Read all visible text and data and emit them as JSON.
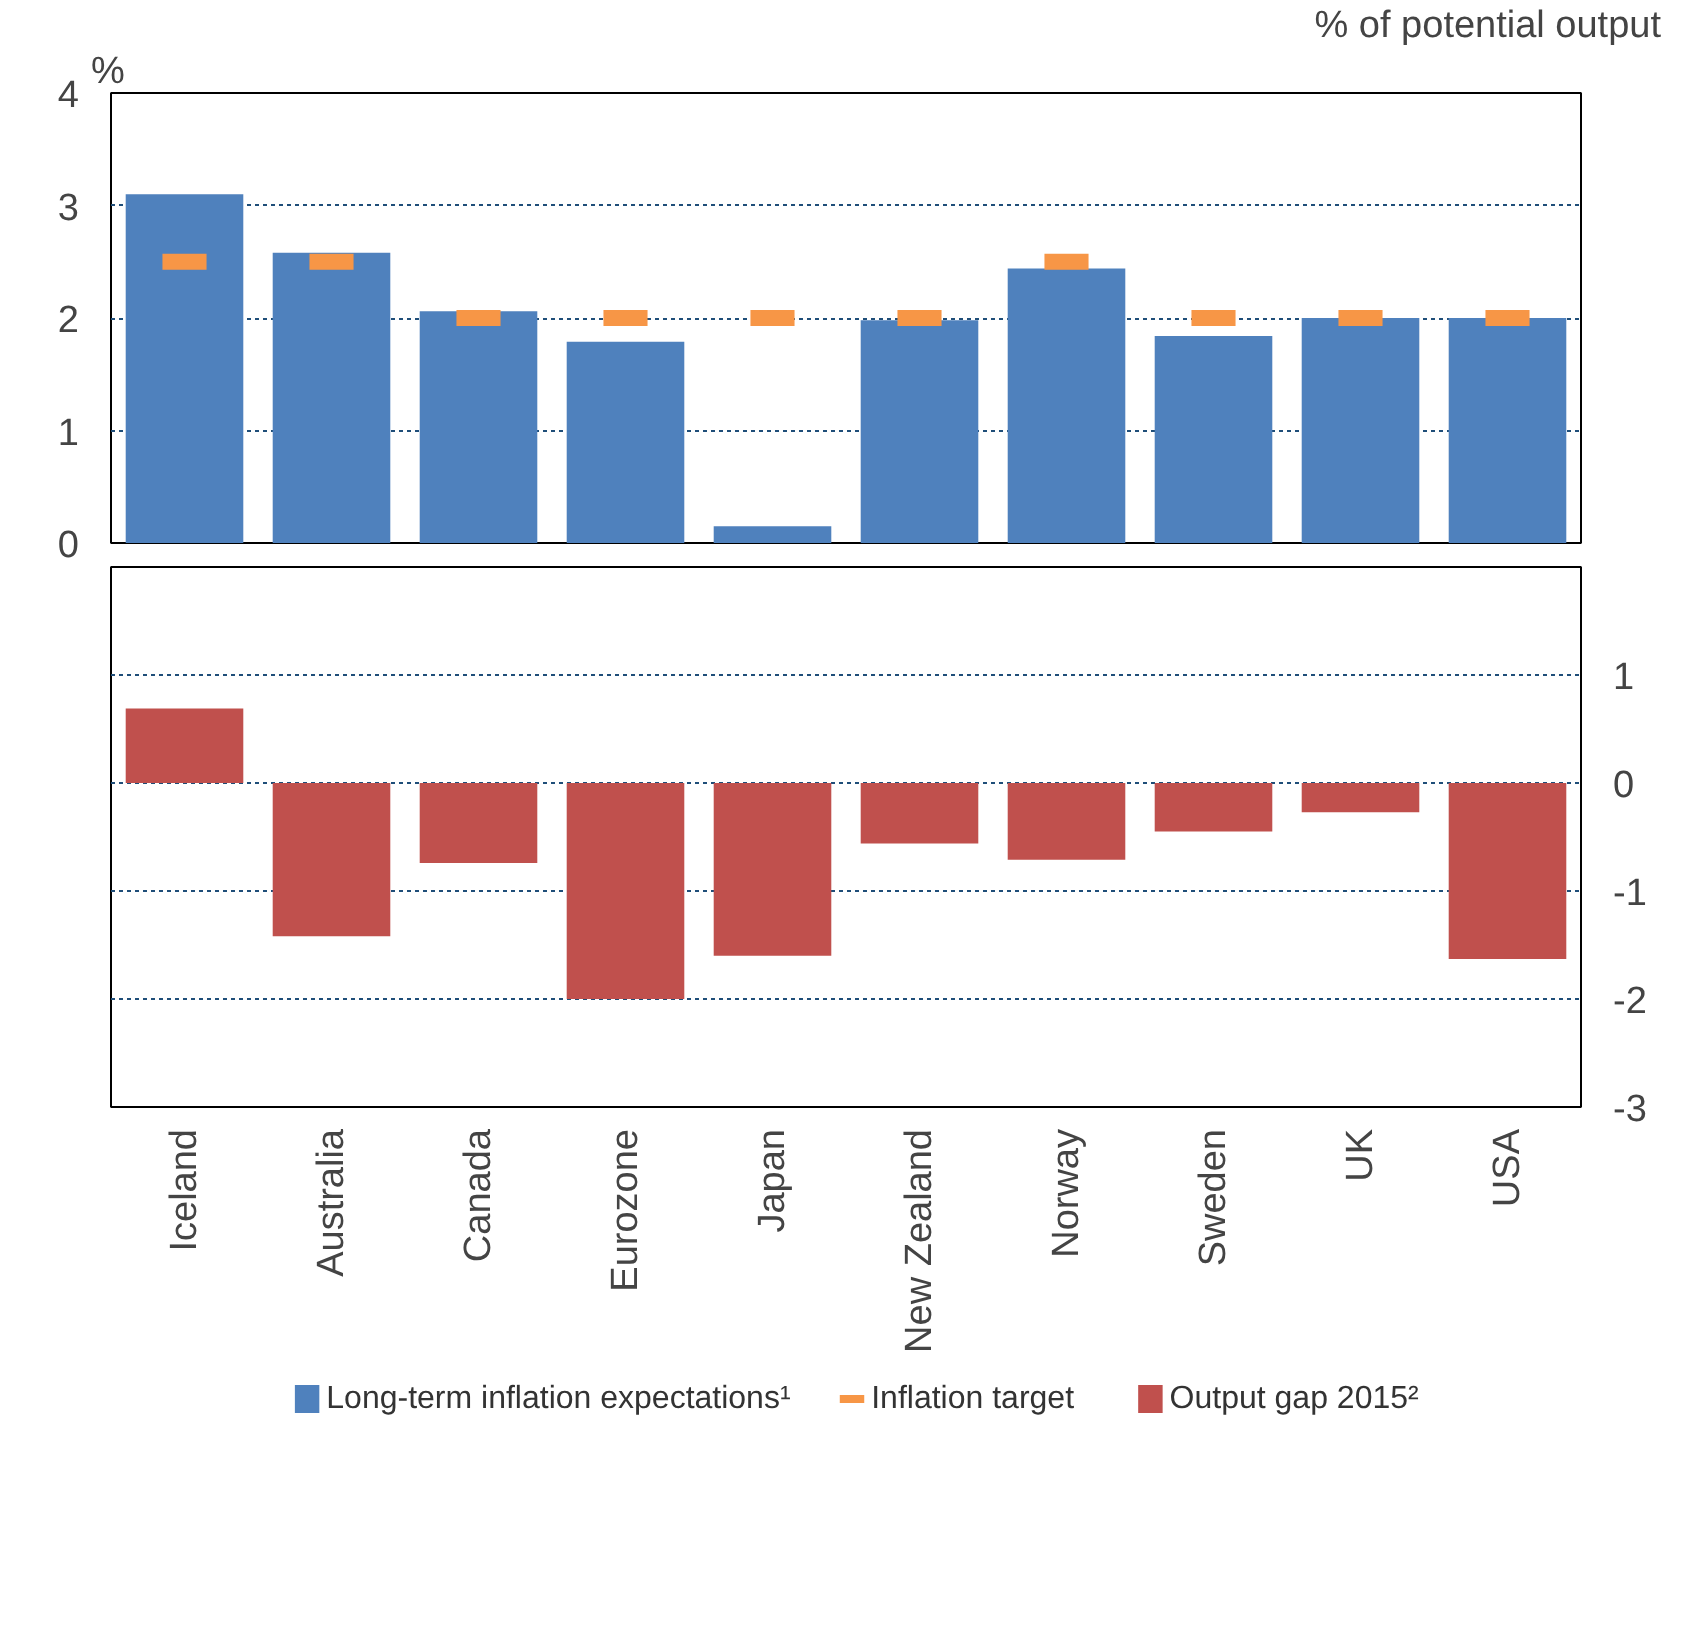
{
  "chart_data": [
    {
      "type": "bar",
      "ylabel": "%",
      "categories": [
        null,
        null,
        null,
        null,
        null,
        null,
        null,
        null,
        null,
        null
      ],
      "series": [
        {
          "name": "Long-term inflation expectations¹",
          "color": "#4f81bd",
          "values": [
            3.1,
            2.58,
            2.06,
            1.79,
            0.15,
            1.98,
            2.44,
            1.84,
            2.0,
            2.0
          ]
        },
        {
          "name": "Inflation target",
          "type": "scatter",
          "color": "#f79646",
          "values": [
            2.5,
            2.5,
            2.0,
            2.0,
            2.0,
            2.0,
            2.5,
            2.0,
            2.0,
            2.0
          ]
        }
      ],
      "ylim": [
        0,
        4
      ],
      "yticks": [
        0,
        1,
        2,
        3,
        4
      ],
      "grid": "y",
      "tick_labels": "y",
      "legend": "bottom"
    },
    {
      "type": "bar",
      "y2label": "% of potential output",
      "categories": [
        "Iceland",
        "Australia",
        "Canada",
        "Eurozone",
        "Japan",
        "New Zealand",
        "Norway",
        "Sweden",
        "UK",
        "USA"
      ],
      "series": [
        {
          "name": "Output gap 2015²",
          "color": "#c0504d",
          "axis": "y2",
          "values": [
            0.69,
            -1.42,
            -0.74,
            -2.0,
            -1.6,
            -0.56,
            -0.71,
            -0.45,
            -0.27,
            -1.63
          ]
        }
      ],
      "y2lim": [
        -3,
        2
      ],
      "y2ticks": [
        -3,
        -2,
        -1,
        0,
        1
      ],
      "grid": "y",
      "legend": "bottom"
    }
  ]
}
